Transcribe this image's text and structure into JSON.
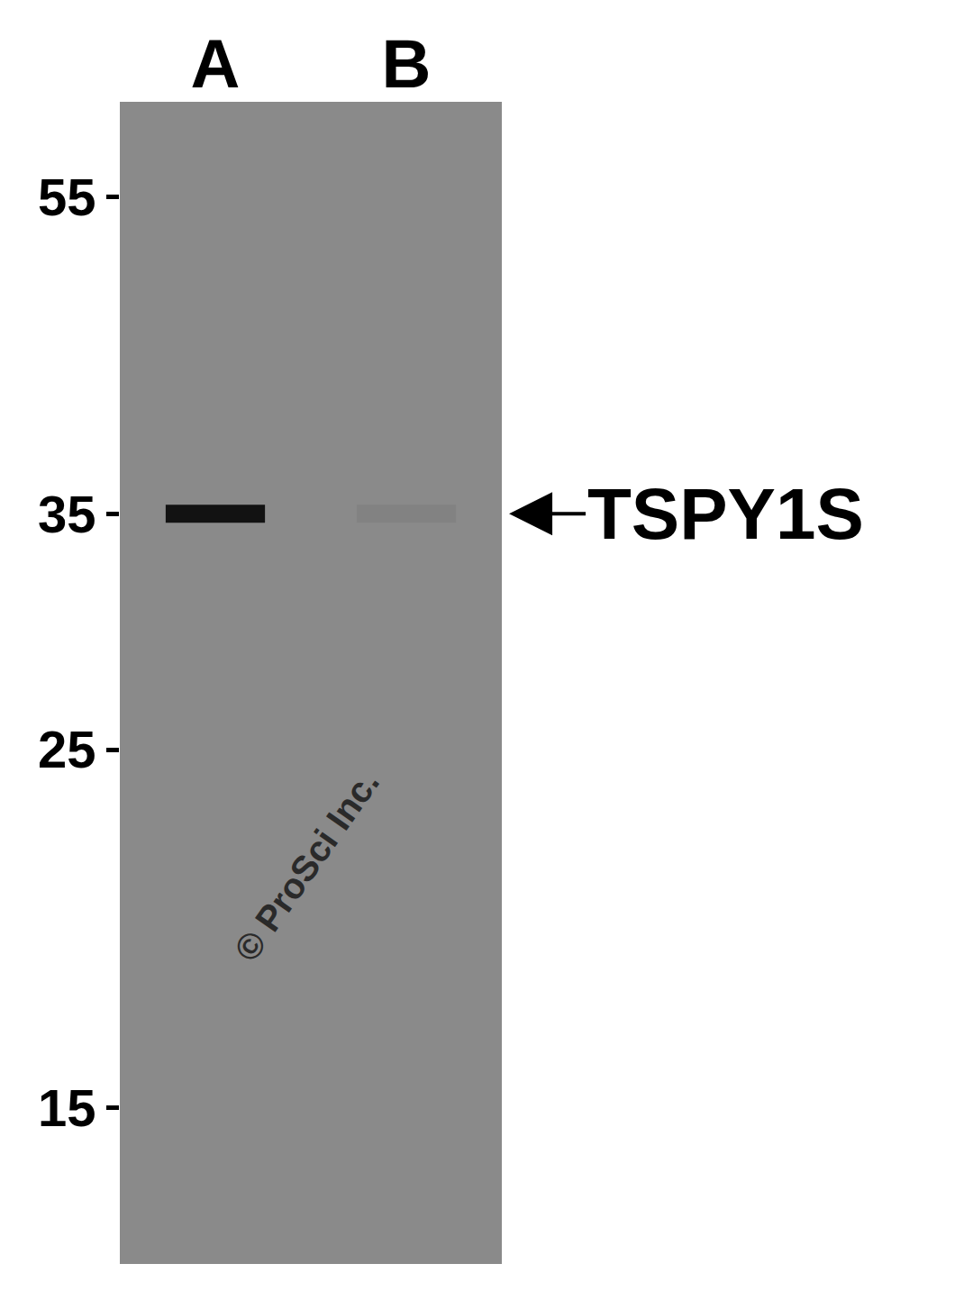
{
  "chart_data": {
    "type": "western_blot",
    "title": "TSPY1S",
    "lanes": [
      "A",
      "B"
    ],
    "bands": [
      {
        "lane": "A",
        "mw": 35,
        "intensity": 1
      },
      {
        "lane": "B",
        "mw": 35,
        "intensity": 0.06
      }
    ],
    "ylim": [
      12,
      63
    ],
    "yticks": [
      55,
      35,
      25,
      15
    ],
    "log": "y",
    "annotations": [
      "© ProSci Inc."
    ],
    "color": "#8a8a8a"
  }
}
